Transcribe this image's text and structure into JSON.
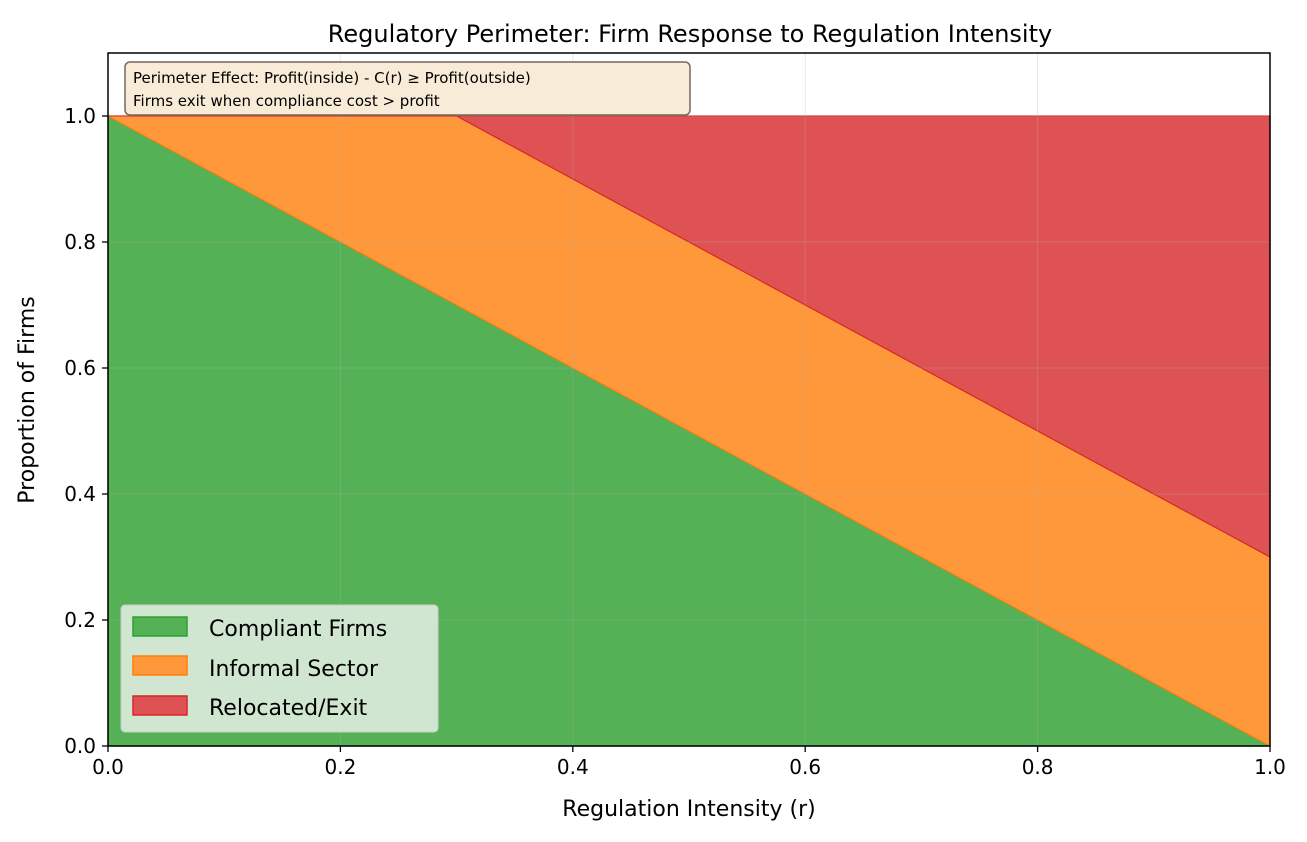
{
  "chart_data": {
    "type": "area",
    "stacked": true,
    "title": "Regulatory Perimeter: Firm Response to Regulation Intensity",
    "xlabel": "Regulation Intensity (r)",
    "ylabel": "Proportion of Firms",
    "xlim": [
      0.0,
      1.0
    ],
    "ylim": [
      0.0,
      1.1
    ],
    "xticks": [
      "0.0",
      "0.2",
      "0.4",
      "0.6",
      "0.8",
      "1.0"
    ],
    "yticks": [
      "0.0",
      "0.2",
      "0.4",
      "0.6",
      "0.8",
      "1.0"
    ],
    "grid": true,
    "legend_position": "lower left",
    "x": [
      0.0,
      0.1,
      0.2,
      0.3,
      0.4,
      0.5,
      0.6,
      0.7,
      0.8,
      0.9,
      1.0
    ],
    "series": [
      {
        "name": "Compliant Firms",
        "color": "#2ca02c",
        "values": [
          1.0,
          0.9,
          0.8,
          0.7,
          0.6,
          0.5,
          0.4,
          0.3,
          0.2,
          0.1,
          0.0
        ]
      },
      {
        "name": "Informal Sector",
        "color": "#ff7f0e",
        "values": [
          0.0,
          0.1,
          0.2,
          0.3,
          0.3,
          0.3,
          0.3,
          0.3,
          0.3,
          0.3,
          0.3
        ]
      },
      {
        "name": "Relocated/Exit",
        "color": "#d62728",
        "values": [
          0.0,
          0.0,
          0.0,
          0.0,
          0.1,
          0.2,
          0.3,
          0.4,
          0.5,
          0.6,
          0.7
        ]
      }
    ],
    "annotation": {
      "line1": "Perimeter Effect: Profit(inside) - C(r) ≥ Profit(outside)",
      "line2": "Firms exit when compliance cost > profit"
    }
  }
}
